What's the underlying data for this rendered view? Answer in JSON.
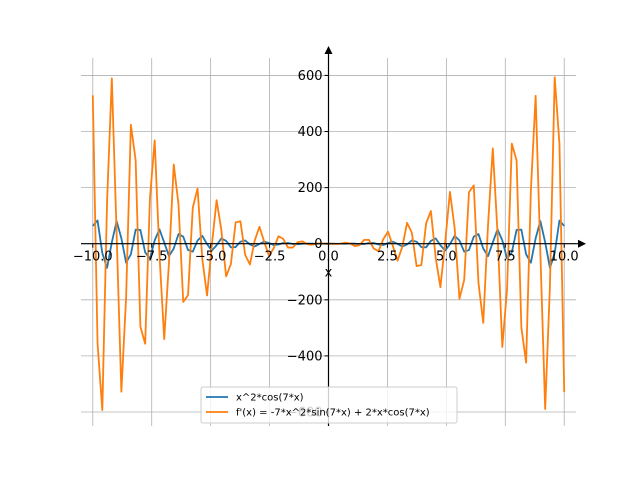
{
  "chart_data": {
    "type": "line",
    "title": "",
    "xlabel": "x",
    "ylabel": "",
    "xlim": [
      -10.5,
      10.5
    ],
    "ylim": [
      -650,
      680
    ],
    "grid": true,
    "legend_position": "lower-center",
    "spines": "centered-at-origin-with-arrows",
    "x_ticks": [
      -10.0,
      -7.5,
      -5.0,
      -2.5,
      0.0,
      2.5,
      5.0,
      7.5,
      10.0
    ],
    "x_tick_labels": [
      "−10.0",
      "−7.5",
      "−5.0",
      "−2.5",
      "0.0",
      "2.5",
      "5.0",
      "7.5",
      "10.0"
    ],
    "y_ticks": [
      -600,
      -400,
      -200,
      0,
      200,
      400,
      600
    ],
    "y_tick_labels": [
      "−600",
      "−400",
      "−200",
      "0",
      "200",
      "400",
      "600"
    ],
    "sampling": {
      "x_start": -10,
      "x_end": 10,
      "samples": 100
    },
    "series": [
      {
        "name": "x^2*cos(7*x)",
        "expression": "x^2*cos(7*x)",
        "color": "#1f77b4"
      },
      {
        "name": "f'(x) = -7*x^2*sin(7*x) + 2*x*cos(7*x)",
        "expression": "-7*x^2*sin(7*x) + 2*x*cos(7*x)",
        "color": "#ff7f0e"
      }
    ]
  }
}
